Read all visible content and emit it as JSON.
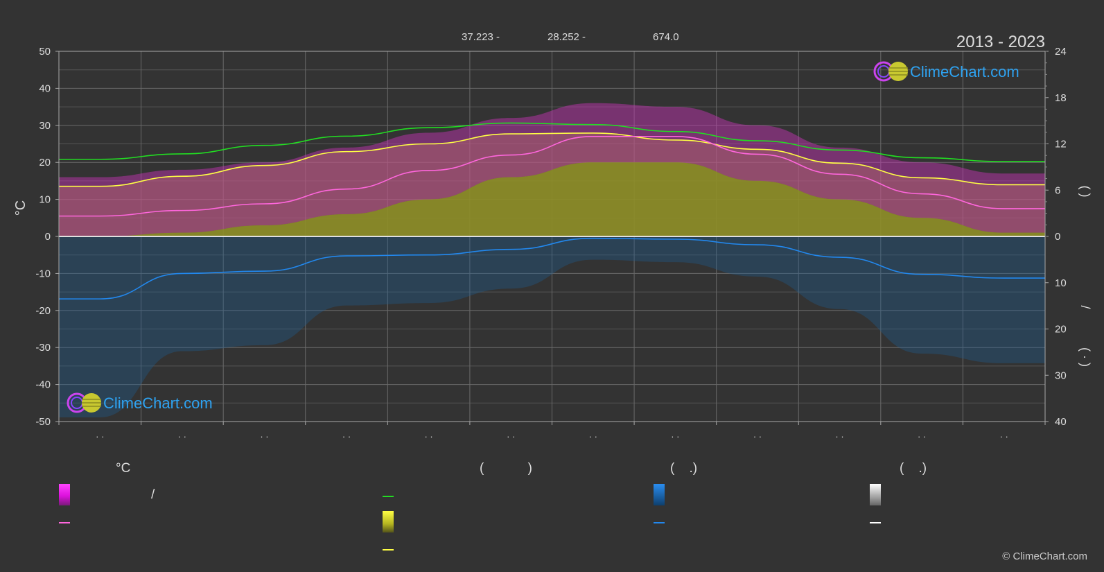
{
  "header": {
    "period": "2013 - 2023",
    "coords": [
      "37.223 -",
      "28.252 -",
      "674.0"
    ]
  },
  "brand": {
    "name": "ClimeChart.com",
    "copyright": "© ClimeChart.com"
  },
  "colors": {
    "background": "#333333",
    "daylight": "#22dd22",
    "sunshine_line": "#ffff44",
    "temp_mean_line": "#ff66dd",
    "temp_band": "#dd22dd",
    "sunshine_band": "#b5b520",
    "precip_line": "#2288ee",
    "precip_band": "#1e6fb0",
    "brand_blue": "#2ea3f2"
  },
  "legend": {
    "col1_heading": "°C",
    "col1_slash": "/",
    "col2_heading": "(            )",
    "col3_heading": "(    .)",
    "col4_heading": "(    .)"
  },
  "right_axis_marks": {
    "upper": "(       )",
    "lower_slash": "/",
    "lower": "(   ·   )"
  },
  "chart_data": {
    "type": "area",
    "title": "",
    "period": "2013 - 2023",
    "left_axis": {
      "label": "°C",
      "ylim": [
        -50,
        50
      ],
      "ticks": [
        50,
        40,
        30,
        20,
        10,
        0,
        -10,
        -20,
        -30,
        -40,
        -50
      ]
    },
    "right_axis_top": {
      "ylim": [
        0,
        24
      ],
      "ticks": [
        24,
        18,
        12,
        6,
        0
      ]
    },
    "right_axis_bottom": {
      "ylim": [
        0,
        40
      ],
      "ticks": [
        0,
        10,
        20,
        30,
        40
      ]
    },
    "x": {
      "months": 12,
      "tick_labels": [
        "· ·",
        "· ·",
        "· ·",
        "· ·",
        "· ·",
        "· ·",
        "· ·",
        "· ·",
        "· ·",
        "· ·",
        "· ·",
        "· ·"
      ]
    },
    "grid": true,
    "series": [
      {
        "key": "daylight",
        "axis": "right_top",
        "color": "#22dd22",
        "values": [
          10.0,
          10.7,
          11.8,
          13.0,
          14.1,
          14.7,
          14.5,
          13.6,
          12.4,
          11.2,
          10.2,
          9.7
        ]
      },
      {
        "key": "sunshine",
        "axis": "right_top",
        "color": "#ffff44",
        "values": [
          6.5,
          7.8,
          9.2,
          11.0,
          12.0,
          13.3,
          13.4,
          12.5,
          11.3,
          9.5,
          7.6,
          6.7
        ]
      },
      {
        "key": "temp_mean",
        "axis": "left",
        "color": "#ff66dd",
        "values": [
          5.5,
          7.0,
          8.8,
          12.8,
          17.8,
          22.0,
          27.0,
          27.0,
          22.2,
          16.8,
          11.5,
          7.5
        ]
      },
      {
        "key": "temp_max",
        "axis": "left",
        "color": "#dd22dd",
        "values": [
          16.0,
          18.0,
          20.0,
          24.0,
          28.0,
          32.0,
          36.0,
          35.0,
          30.0,
          24.0,
          20.0,
          17.0
        ]
      },
      {
        "key": "temp_min",
        "axis": "left",
        "color": "#b5b520",
        "values": [
          0.0,
          1.0,
          3.0,
          6.0,
          10.0,
          16.0,
          20.0,
          20.0,
          15.0,
          10.0,
          5.0,
          1.0
        ]
      },
      {
        "key": "precipitation",
        "axis": "right_bottom",
        "color": "#2288ee",
        "values": [
          13.5,
          8.0,
          7.5,
          4.2,
          4.0,
          2.8,
          0.4,
          0.6,
          1.8,
          4.5,
          8.2,
          9.0
        ]
      }
    ]
  }
}
